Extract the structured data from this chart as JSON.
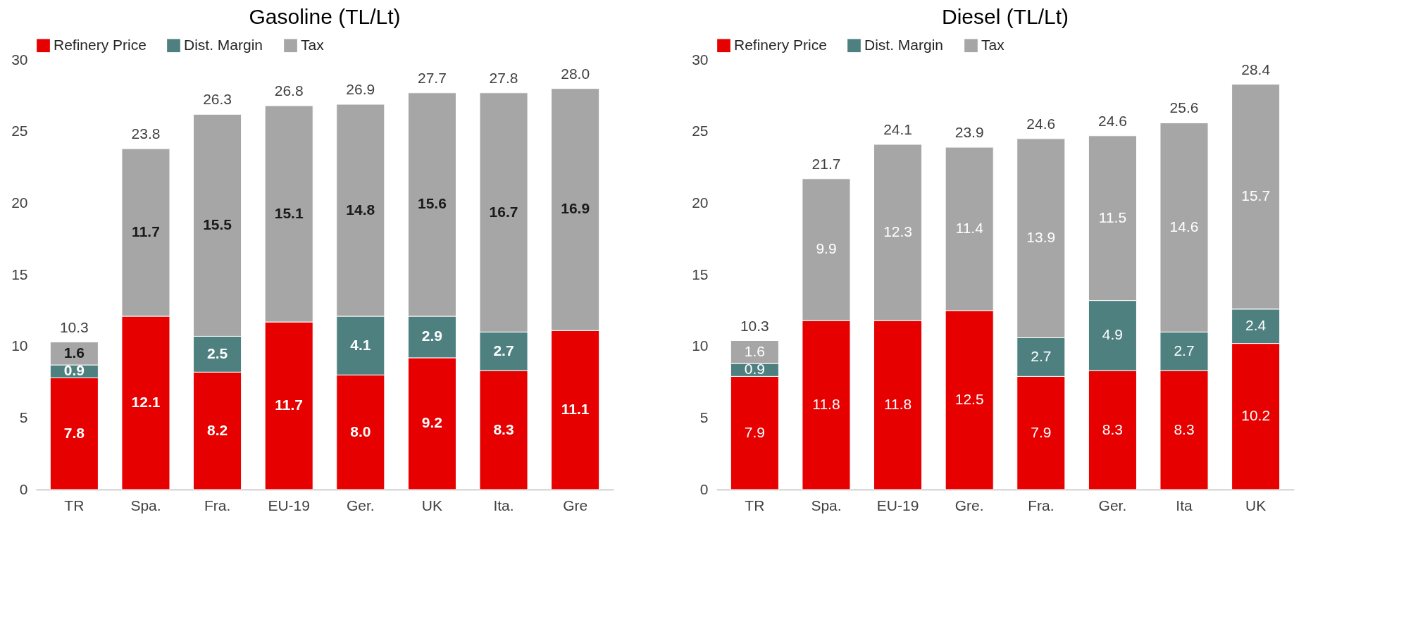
{
  "chart_data": [
    {
      "type": "bar",
      "title": "Gasoline (TL/Lt)",
      "stacked": true,
      "categories": [
        "TR",
        "Spa.",
        "Fra.",
        "EU-19",
        "Ger.",
        "UK",
        "Ita.",
        "Gre"
      ],
      "series": [
        {
          "name": "Refinery Price",
          "color": "#e60000",
          "values": [
            7.8,
            12.1,
            8.2,
            11.7,
            8.0,
            9.2,
            8.3,
            11.1
          ],
          "value_labels": [
            "7.8",
            "12.1",
            "8.2",
            "11.7",
            "8.0",
            "9.2",
            "8.3",
            "11.1"
          ]
        },
        {
          "name": "Dist. Margin",
          "color": "#4f8080",
          "values": [
            0.9,
            null,
            2.5,
            null,
            4.1,
            2.9,
            2.7,
            null
          ],
          "value_labels": [
            "0.9",
            null,
            "2.5",
            null,
            "4.1",
            "2.9",
            "2.7",
            null
          ]
        },
        {
          "name": "Tax",
          "color": "#a6a6a6",
          "values": [
            1.6,
            11.7,
            15.5,
            15.1,
            14.8,
            15.6,
            16.7,
            16.9
          ],
          "value_labels": [
            "1.6",
            "11.7",
            "15.5",
            "15.1",
            "14.8",
            "15.6",
            "16.7",
            "16.9"
          ]
        }
      ],
      "totals": [
        "10.3",
        "23.8",
        "26.3",
        "26.8",
        "26.9",
        "27.7",
        "27.8",
        "28.0"
      ],
      "ylim": [
        0,
        30
      ],
      "yticks": [
        0,
        5,
        10,
        15,
        20,
        25,
        30
      ],
      "legend": "top"
    },
    {
      "type": "bar",
      "title": "Diesel (TL/Lt)",
      "stacked": true,
      "categories": [
        "TR",
        "Spa.",
        "EU-19",
        "Gre.",
        "Fra.",
        "Ger.",
        "Ita",
        "UK"
      ],
      "series": [
        {
          "name": "Refinery Price",
          "color": "#e60000",
          "values": [
            7.9,
            11.8,
            11.8,
            12.5,
            7.9,
            8.3,
            8.3,
            10.2
          ]
        },
        {
          "name": "Dist. Margin",
          "color": "#4f8080",
          "values": [
            0.9,
            null,
            null,
            null,
            2.7,
            4.9,
            2.7,
            2.4
          ]
        },
        {
          "name": "Tax",
          "color": "#a6a6a6",
          "values": [
            1.6,
            9.9,
            12.3,
            11.4,
            13.9,
            11.5,
            14.6,
            15.7
          ]
        }
      ],
      "totals": [
        "10.3",
        "21.7",
        "24.1",
        "23.9",
        "24.6",
        "24.6",
        "25.6",
        "28.4"
      ],
      "data_labels": true,
      "ylim": [
        0,
        30
      ],
      "yticks": [
        0,
        5,
        10,
        15,
        20,
        25,
        30
      ],
      "legend": "top"
    }
  ]
}
